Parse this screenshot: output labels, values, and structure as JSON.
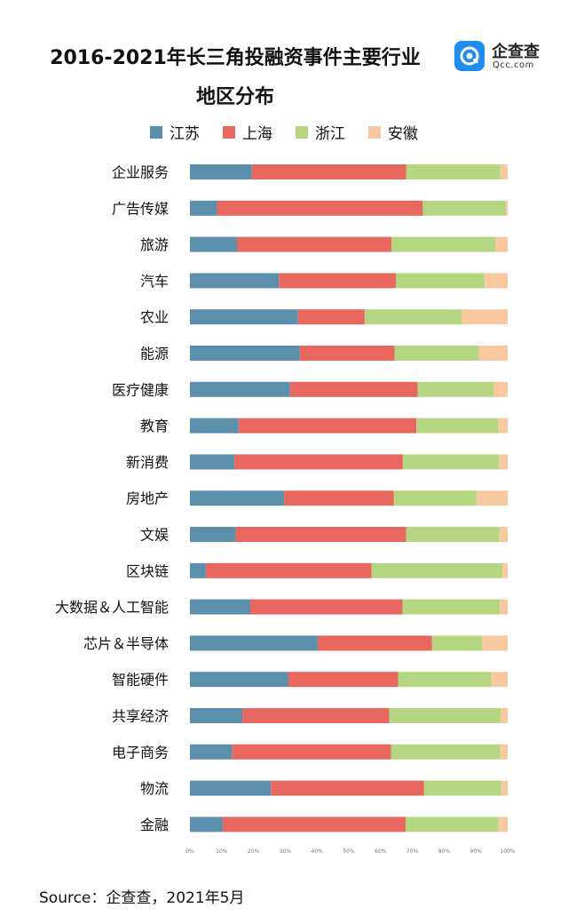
{
  "title_line1": "2016-2021年长三角投融资事件主要行业",
  "title_line2": "地区分布",
  "logo": {
    "name": "企查查",
    "url": "Qcc.com"
  },
  "source": "Source：企查查，2021年5月",
  "chart_data": {
    "type": "bar",
    "orientation": "horizontal",
    "stacked": "percent",
    "xlim": [
      0,
      100
    ],
    "x_ticks": [
      "0%",
      "10%",
      "20%",
      "30%",
      "40%",
      "50%",
      "60%",
      "70%",
      "80%",
      "90%",
      "100%"
    ],
    "legend_position": "top",
    "categories": [
      "企业服务",
      "广告传媒",
      "旅游",
      "汽车",
      "农业",
      "能源",
      "医疗健康",
      "教育",
      "新消费",
      "房地产",
      "文娱",
      "区块链",
      "大数据＆人工智能",
      "芯片＆半导体",
      "智能硬件",
      "共享经济",
      "电子商务",
      "物流",
      "金融"
    ],
    "series": [
      {
        "name": "江苏",
        "color": "#5b8fab",
        "values": [
          19.5,
          8.5,
          14.8,
          28.0,
          34.0,
          34.6,
          31.5,
          15.3,
          14.0,
          29.7,
          14.4,
          5.0,
          19.0,
          40.2,
          31.0,
          16.5,
          13.3,
          25.5,
          10.3
        ]
      },
      {
        "name": "上海",
        "color": "#e8675f",
        "values": [
          48.6,
          64.8,
          48.6,
          36.8,
          21.0,
          29.8,
          40.2,
          56.0,
          53.0,
          34.5,
          53.6,
          52.2,
          47.9,
          36.0,
          34.5,
          46.2,
          50.0,
          48.2,
          57.6
        ]
      },
      {
        "name": "浙江",
        "color": "#b5d680",
        "values": [
          29.6,
          26.2,
          32.8,
          28.0,
          30.5,
          26.6,
          23.8,
          25.7,
          30.4,
          26.0,
          29.4,
          41.2,
          30.6,
          15.8,
          29.4,
          35.1,
          34.4,
          24.3,
          29.2
        ]
      },
      {
        "name": "安徽",
        "color": "#f8c9a0",
        "values": [
          2.3,
          0.5,
          3.8,
          7.2,
          14.5,
          9.0,
          4.5,
          3.0,
          2.6,
          9.8,
          2.6,
          1.6,
          2.5,
          8.0,
          5.1,
          2.2,
          2.3,
          2.0,
          2.9
        ]
      }
    ]
  }
}
